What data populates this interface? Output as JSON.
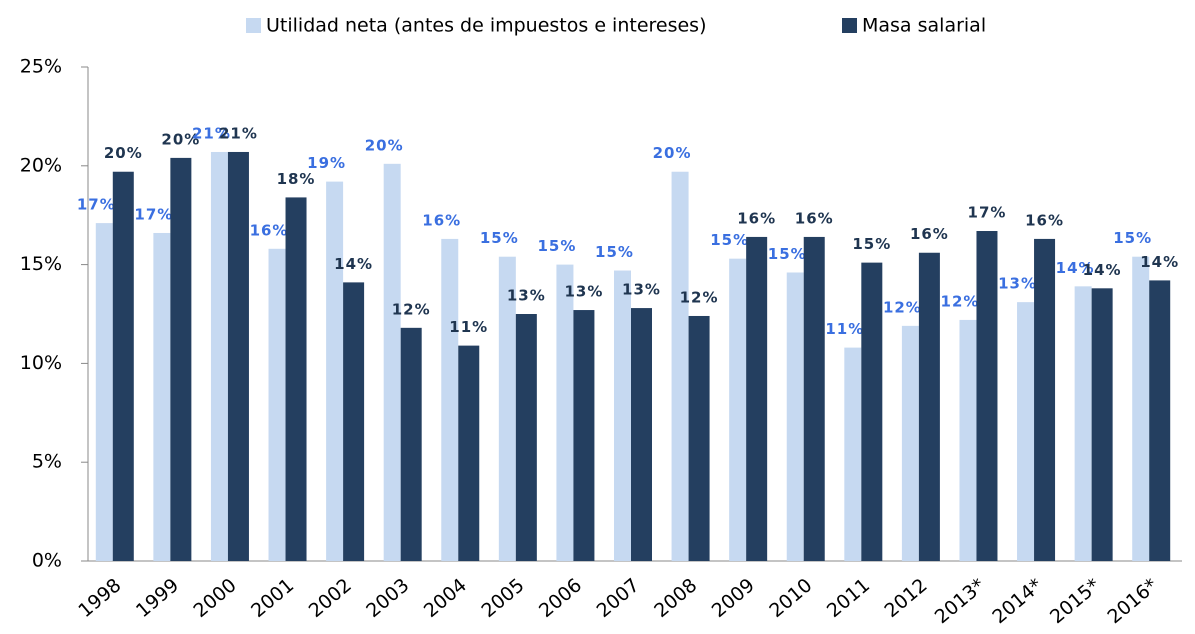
{
  "chart_data": {
    "type": "bar",
    "categories": [
      "1998",
      "1999",
      "2000",
      "2001",
      "2002",
      "2003",
      "2004",
      "2005",
      "2006",
      "2007",
      "2008",
      "2009",
      "2010",
      "2011",
      "2012",
      "2013*",
      "2014*",
      "2015*",
      "2016*"
    ],
    "series": [
      {
        "name": "Utilidad neta (antes de impuestos e intereses)",
        "color": "#c6d9f1",
        "label_color": "#3a6fe0",
        "values": [
          17.1,
          16.6,
          20.7,
          15.8,
          19.2,
          20.1,
          16.3,
          15.4,
          15.0,
          14.7,
          19.7,
          15.3,
          14.6,
          10.8,
          11.9,
          12.2,
          13.1,
          13.9,
          15.4
        ],
        "value_labels": [
          "17%",
          "17%",
          "21%",
          "16%",
          "19%",
          "20%",
          "16%",
          "15%",
          "15%",
          "15%",
          "20%",
          "15%",
          "15%",
          "11%",
          "12%",
          "12%",
          "13%",
          "14%",
          "15%"
        ]
      },
      {
        "name": "Masa salarial",
        "color": "#243f60",
        "label_color": "#1f3550",
        "values": [
          19.7,
          20.4,
          20.7,
          18.4,
          14.1,
          11.8,
          10.9,
          12.5,
          12.7,
          12.8,
          12.4,
          16.4,
          16.4,
          15.1,
          15.6,
          16.7,
          16.3,
          13.8,
          14.2
        ],
        "value_labels": [
          "20%",
          "20%",
          "21%",
          "18%",
          "14%",
          "12%",
          "11%",
          "13%",
          "13%",
          "13%",
          "12%",
          "16%",
          "16%",
          "15%",
          "16%",
          "17%",
          "16%",
          "14%",
          "14%"
        ]
      }
    ],
    "ylim": [
      0,
      25
    ],
    "yticks": [
      {
        "value": 0,
        "label": "0%"
      },
      {
        "value": 5,
        "label": "5%"
      },
      {
        "value": 10,
        "label": "10%"
      },
      {
        "value": 15,
        "label": "15%"
      },
      {
        "value": 20,
        "label": "20%"
      },
      {
        "value": 25,
        "label": "25%"
      }
    ],
    "legend": "top"
  }
}
